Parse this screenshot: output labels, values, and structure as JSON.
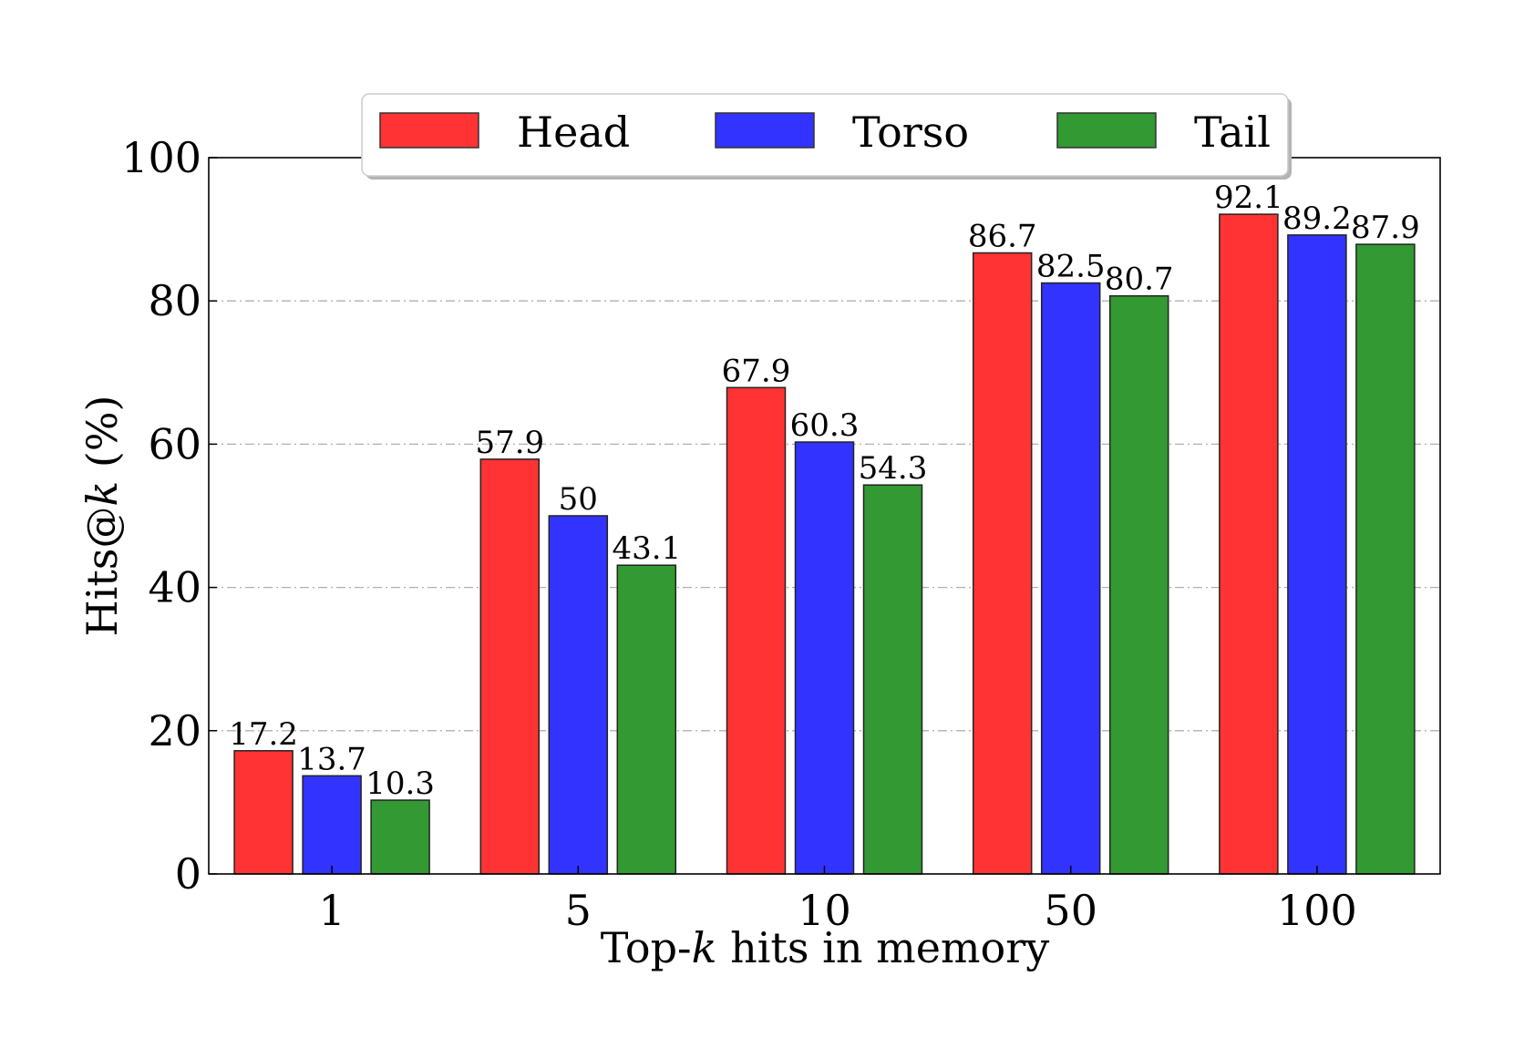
{
  "chart_data": {
    "type": "bar",
    "categories": [
      "1",
      "5",
      "10",
      "50",
      "100"
    ],
    "series": [
      {
        "name": "Head",
        "color": "#ff3333",
        "values": [
          17.2,
          57.9,
          67.9,
          86.7,
          92.1
        ],
        "labels": [
          "17.2",
          "57.9",
          "67.9",
          "86.7",
          "92.1"
        ]
      },
      {
        "name": "Torso",
        "color": "#3333ff",
        "values": [
          13.7,
          50,
          60.3,
          82.5,
          89.2
        ],
        "labels": [
          "13.7",
          "50",
          "60.3",
          "82.5",
          "89.2"
        ]
      },
      {
        "name": "Tail",
        "color": "#339933",
        "values": [
          10.3,
          43.1,
          54.3,
          80.7,
          87.9
        ],
        "labels": [
          "10.3",
          "43.1",
          "54.3",
          "80.7",
          "87.9"
        ]
      }
    ],
    "xlabel": {
      "pre": "Top-",
      "var": "k",
      "post": " hits in memory"
    },
    "ylabel": {
      "pre": "Hits@",
      "var": "k",
      "post": " (%)"
    },
    "ylim": [
      0,
      100
    ],
    "yticks": [
      "0",
      "20",
      "40",
      "60",
      "80",
      "100"
    ],
    "grid": "horizontal dash-dot",
    "legend": "top-center"
  }
}
